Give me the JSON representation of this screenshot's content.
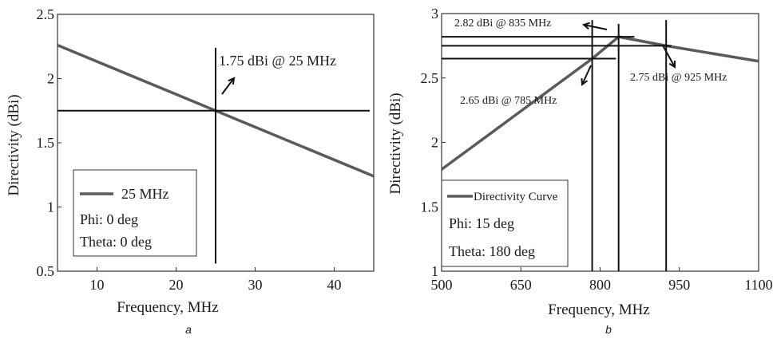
{
  "chart_data": [
    {
      "type": "line",
      "panel_label": "a",
      "xlabel": "Frequency, MHz",
      "ylabel": "Directivity (dBi)",
      "xlim": [
        5,
        45
      ],
      "ylim": [
        0.5,
        2.5
      ],
      "x_ticks": [
        10,
        20,
        30,
        40
      ],
      "x_tick_labels": [
        "10",
        "20",
        "30",
        "40"
      ],
      "y_ticks": [
        0.5,
        1,
        1.5,
        2,
        2.5
      ],
      "y_tick_labels": [
        "0.5",
        "1",
        "1.5",
        "2",
        "2.5"
      ],
      "grid": false,
      "series": [
        {
          "name": "25 MHz",
          "x": [
            5,
            45
          ],
          "y": [
            2.26,
            1.24
          ]
        }
      ],
      "legend": {
        "placement": "bottom-left",
        "lines": [
          "Phi: 0 deg",
          "Theta: 0 deg"
        ]
      },
      "markers": [
        {
          "x": 25,
          "y": 1.75,
          "label": "1.75 dBi @ 25 MHz",
          "x_extent": [
            5,
            44.5
          ],
          "y_extent": [
            0.56,
            2.24
          ]
        }
      ],
      "colors": {
        "series": "#5a5a5a",
        "marker": "#111111"
      }
    },
    {
      "type": "line",
      "panel_label": "b",
      "xlabel": "Frequency, MHz",
      "ylabel": "Directivity (dBi)",
      "xlim": [
        500,
        1100
      ],
      "ylim": [
        1,
        3
      ],
      "x_ticks": [
        500,
        650,
        800,
        950,
        1100
      ],
      "x_tick_labels": [
        "500",
        "650",
        "800",
        "950",
        "1100"
      ],
      "y_ticks": [
        1,
        1.5,
        2,
        2.5,
        3
      ],
      "y_tick_labels": [
        "1",
        "1.5",
        "2",
        "2.5",
        "3"
      ],
      "grid": false,
      "series": [
        {
          "name": "Directivity Curve",
          "x": [
            500,
            785,
            835,
            925,
            1100
          ],
          "y": [
            1.79,
            2.65,
            2.82,
            2.75,
            2.63
          ]
        }
      ],
      "legend": {
        "placement": "bottom-left",
        "lines": [
          "Phi: 15 deg",
          "Theta: 180 deg"
        ]
      },
      "markers": [
        {
          "x": 785,
          "y": 2.65,
          "label": "2.65 dBi @ 785 MHz",
          "x_extent": [
            500,
            830
          ],
          "y_extent": [
            1,
            2.95
          ]
        },
        {
          "x": 835,
          "y": 2.82,
          "label": "2.82 dBi @ 835 MHz",
          "x_extent": [
            500,
            865
          ],
          "y_extent": [
            1,
            2.92
          ]
        },
        {
          "x": 925,
          "y": 2.75,
          "label": "2.75 dBi @ 925 MHz",
          "x_extent": [
            500,
            935
          ],
          "y_extent": [
            1,
            2.95
          ]
        }
      ],
      "colors": {
        "series": "#5a5a5a",
        "marker": "#111111"
      }
    }
  ]
}
